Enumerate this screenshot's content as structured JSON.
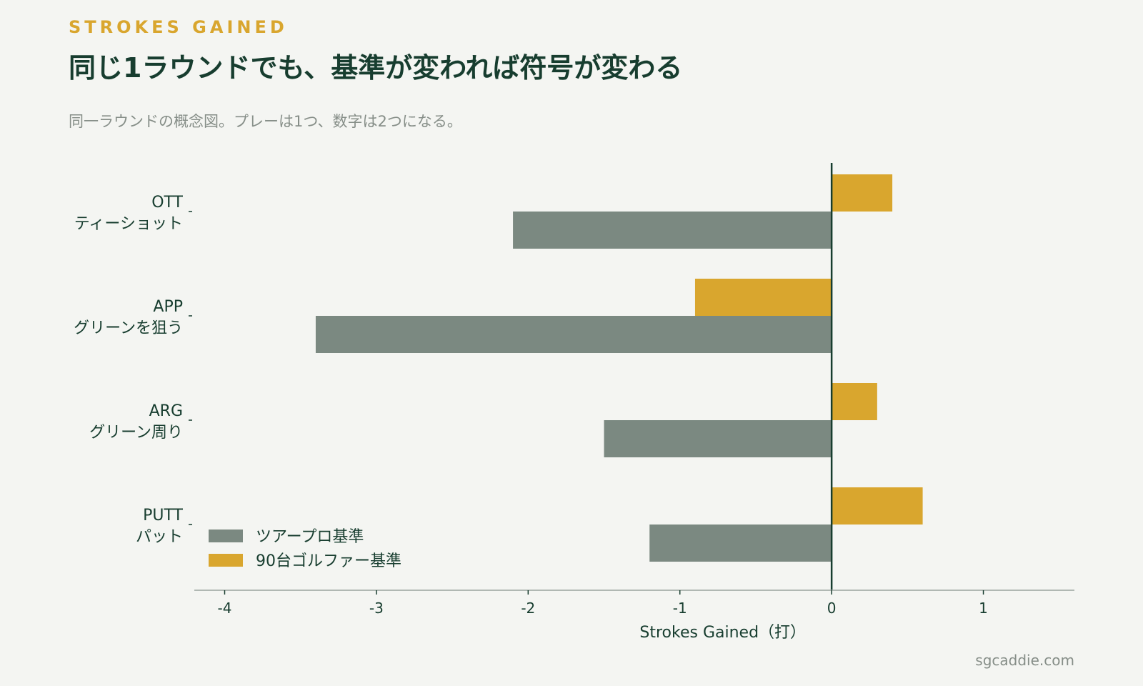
{
  "header": {
    "eyebrow": "STROKES GAINED",
    "title": "同じ1ラウンドでも、基準が変われば符号が変わる",
    "subtitle": "同一ラウンドの概念図。プレーは1つ、数字は2つになる。"
  },
  "footer": {
    "source": "sgcaddie.com"
  },
  "colors": {
    "tour": "#7b8981",
    "amateur": "#d9a62e",
    "axis": "#173d2f",
    "frame": "#9aa39e"
  },
  "chart_data": {
    "type": "bar",
    "orientation": "horizontal",
    "categories": [
      {
        "code": "OTT",
        "label": "ティーショット"
      },
      {
        "code": "APP",
        "label": "グリーンを狙う"
      },
      {
        "code": "ARG",
        "label": "グリーン周り"
      },
      {
        "code": "PUTT",
        "label": "パット"
      }
    ],
    "series": [
      {
        "name": "90台ゴルファー基準",
        "values": [
          0.4,
          -0.9,
          0.3,
          0.6
        ]
      },
      {
        "name": "ツアープロ基準",
        "values": [
          -2.1,
          -3.4,
          -1.5,
          -1.2
        ]
      }
    ],
    "legend_order": [
      "ツアープロ基準",
      "90台ゴルファー基準"
    ],
    "legend_position": "bottom-left",
    "xlabel": "Strokes Gained（打）",
    "xlim": [
      -4.2,
      1.6
    ],
    "xticks": [
      -4,
      -3,
      -2,
      -1,
      0,
      1
    ],
    "grid": false
  }
}
